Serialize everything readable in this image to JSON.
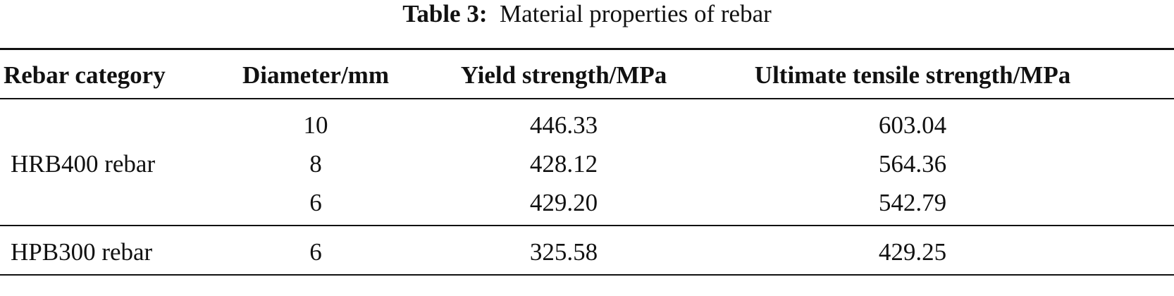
{
  "caption": {
    "label": "Table 3:",
    "text": "Material properties of rebar"
  },
  "table": {
    "header": [
      "Rebar category",
      "Diameter/mm",
      "Yield strength/MPa",
      "Ultimate tensile strength/MPa"
    ],
    "groups": [
      {
        "category": "HRB400 rebar",
        "rows": [
          [
            "10",
            "446.33",
            "603.04"
          ],
          [
            "8",
            "428.12",
            "564.36"
          ],
          [
            "6",
            "429.20",
            "542.79"
          ]
        ]
      },
      {
        "category": "HPB300 rebar",
        "rows": [
          [
            "6",
            "325.58",
            "429.25"
          ]
        ]
      }
    ]
  }
}
